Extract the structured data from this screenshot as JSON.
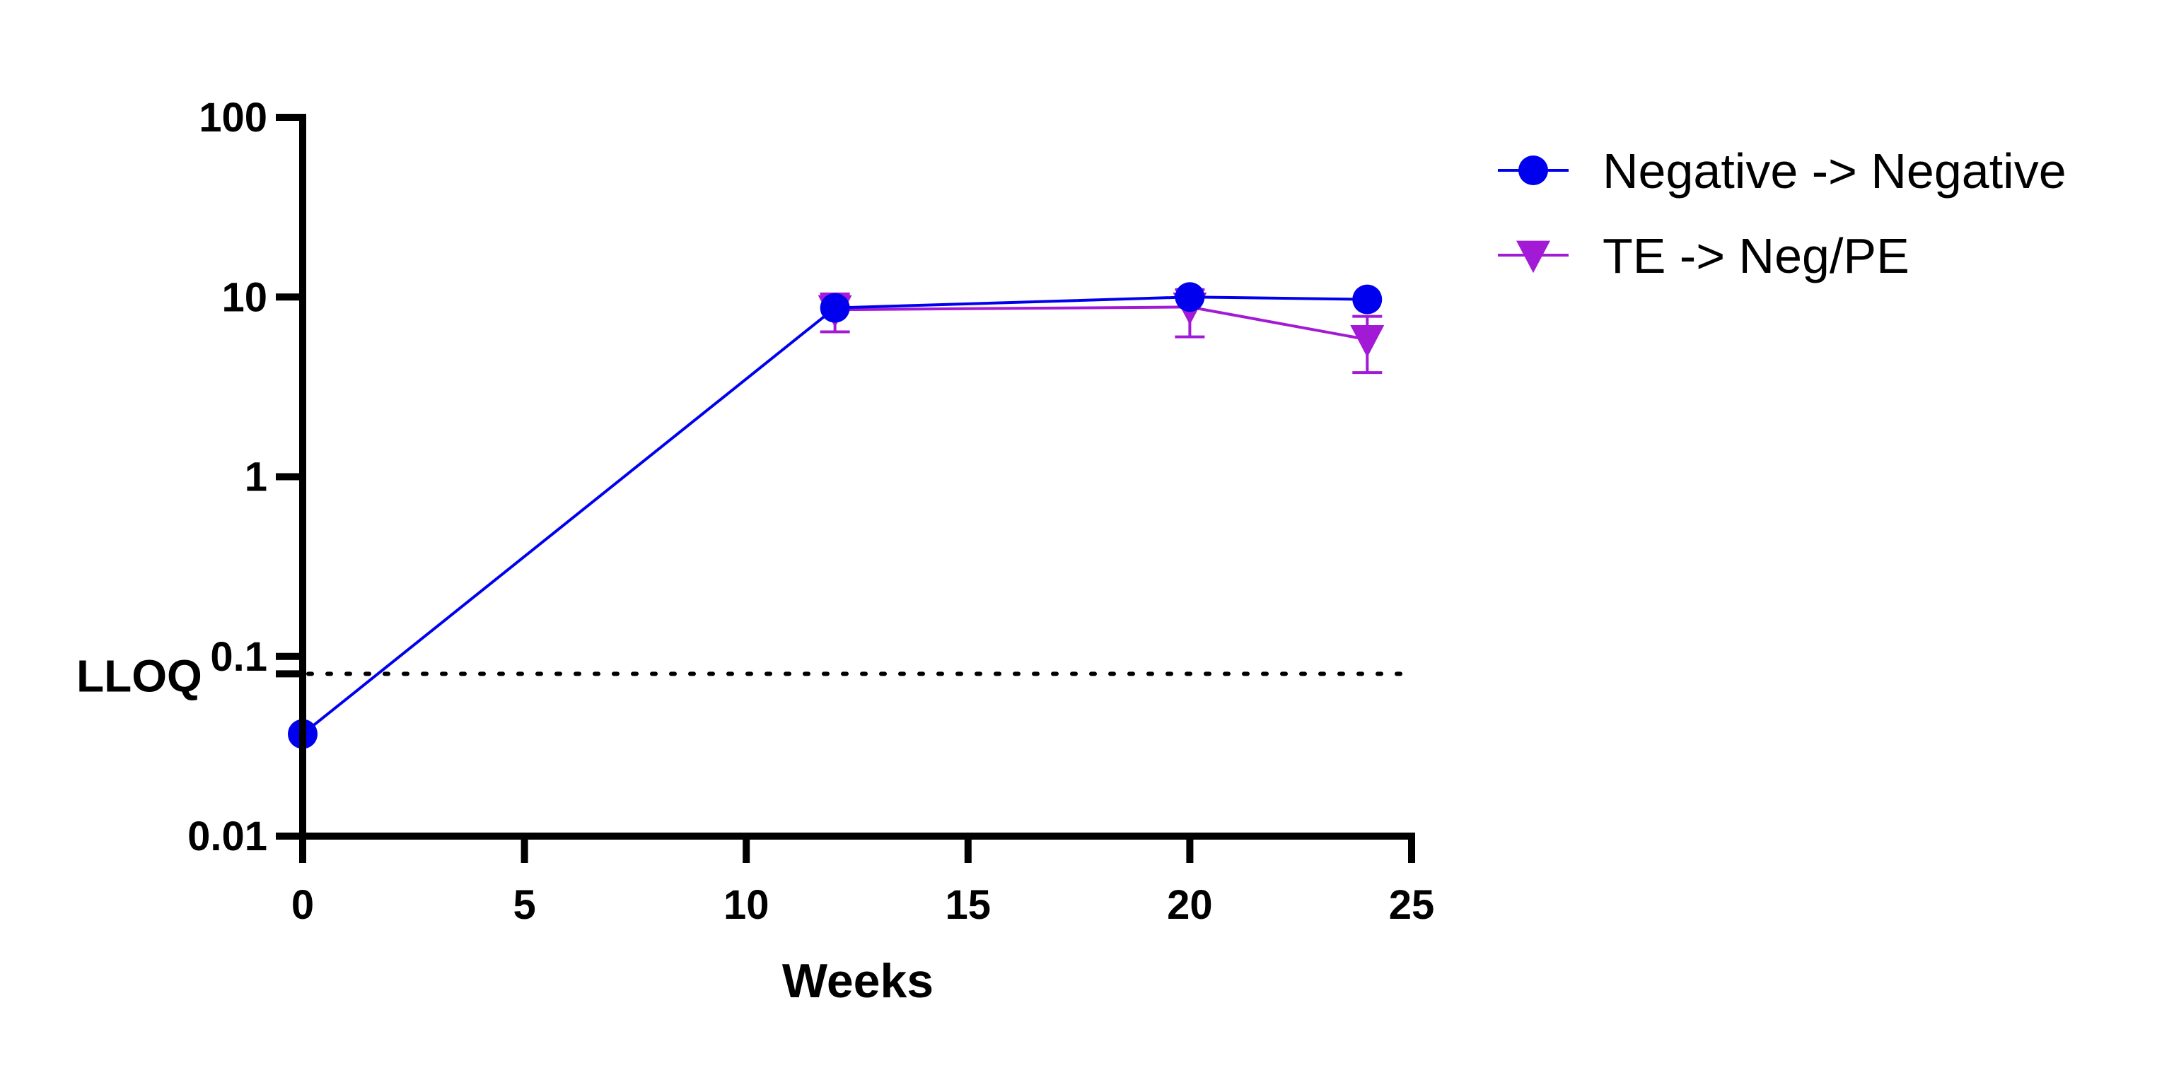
{
  "chart_data": {
    "type": "line",
    "title": "",
    "xlabel": "Weeks",
    "ylabel": "",
    "x_ticks": [
      "0",
      "5",
      "10",
      "15",
      "20",
      "25"
    ],
    "y_ticks": [
      "0.01",
      "0.1",
      "1",
      "10",
      "100"
    ],
    "xlim": [
      0,
      25
    ],
    "ylim": [
      0.01,
      100
    ],
    "y_scale": "log",
    "grid": false,
    "legend_position": "top-right",
    "reference_line": {
      "label": "LLOQ",
      "y": 0.08,
      "style": "dotted",
      "color": "#000000"
    },
    "series": [
      {
        "name": "Negative -> Negative",
        "marker": "circle",
        "color": "#0000ee",
        "x": [
          0,
          12,
          20,
          24
        ],
        "y": [
          0.037,
          8.7,
          10.0,
          9.7
        ],
        "error_low": [
          null,
          null,
          null,
          null
        ],
        "error_high": [
          null,
          null,
          null,
          null
        ]
      },
      {
        "name": "TE -> Neg/PE",
        "marker": "triangle-down",
        "color": "#a21ad6",
        "x": [
          12,
          20,
          24
        ],
        "y": [
          8.5,
          8.8,
          5.8
        ],
        "error_low": [
          6.4,
          6.0,
          3.8
        ],
        "error_high": [
          10.4,
          11.0,
          7.8
        ]
      }
    ]
  }
}
